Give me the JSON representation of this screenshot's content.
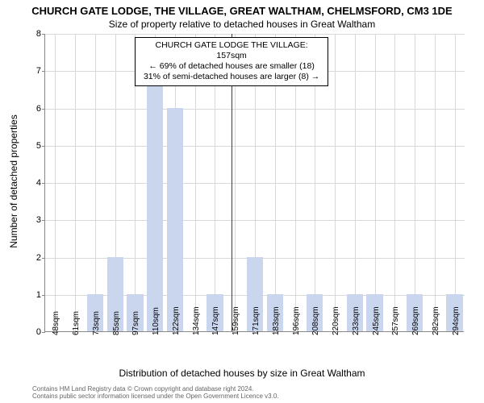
{
  "title_main": "CHURCH GATE LODGE, THE VILLAGE, GREAT WALTHAM, CHELMSFORD, CM3 1DE",
  "title_sub": "Size of property relative to detached houses in Great Waltham",
  "ylabel": "Number of detached properties",
  "xlabel": "Distribution of detached houses by size in Great Waltham",
  "chart": {
    "type": "histogram",
    "ylim": [
      0,
      8
    ],
    "ytick_step": 1,
    "bar_color": "#cad6ed",
    "grid_color": "#d9d9d9",
    "background_color": "#ffffff",
    "marker_color": "#cc0000",
    "marker_x_value": 157,
    "bar_width_ratio": 0.82,
    "x_labels": [
      "48sqm",
      "61sqm",
      "73sqm",
      "85sqm",
      "97sqm",
      "110sqm",
      "122sqm",
      "134sqm",
      "147sqm",
      "159sqm",
      "171sqm",
      "183sqm",
      "196sqm",
      "208sqm",
      "220sqm",
      "233sqm",
      "245sqm",
      "257sqm",
      "269sqm",
      "282sqm",
      "294sqm"
    ],
    "values": [
      0,
      0,
      1,
      2,
      1,
      7,
      6,
      0,
      1,
      0,
      2,
      1,
      0,
      1,
      0,
      1,
      1,
      0,
      1,
      0,
      1
    ]
  },
  "annotation": {
    "line1": "CHURCH GATE LODGE THE VILLAGE: 157sqm",
    "line2": "← 69% of detached houses are smaller (18)",
    "line3": "31% of semi-detached houses are larger (8) →"
  },
  "credit": {
    "line1": "Contains HM Land Registry data © Crown copyright and database right 2024.",
    "line2": "Contains public sector information licensed under the Open Government Licence v3.0."
  }
}
